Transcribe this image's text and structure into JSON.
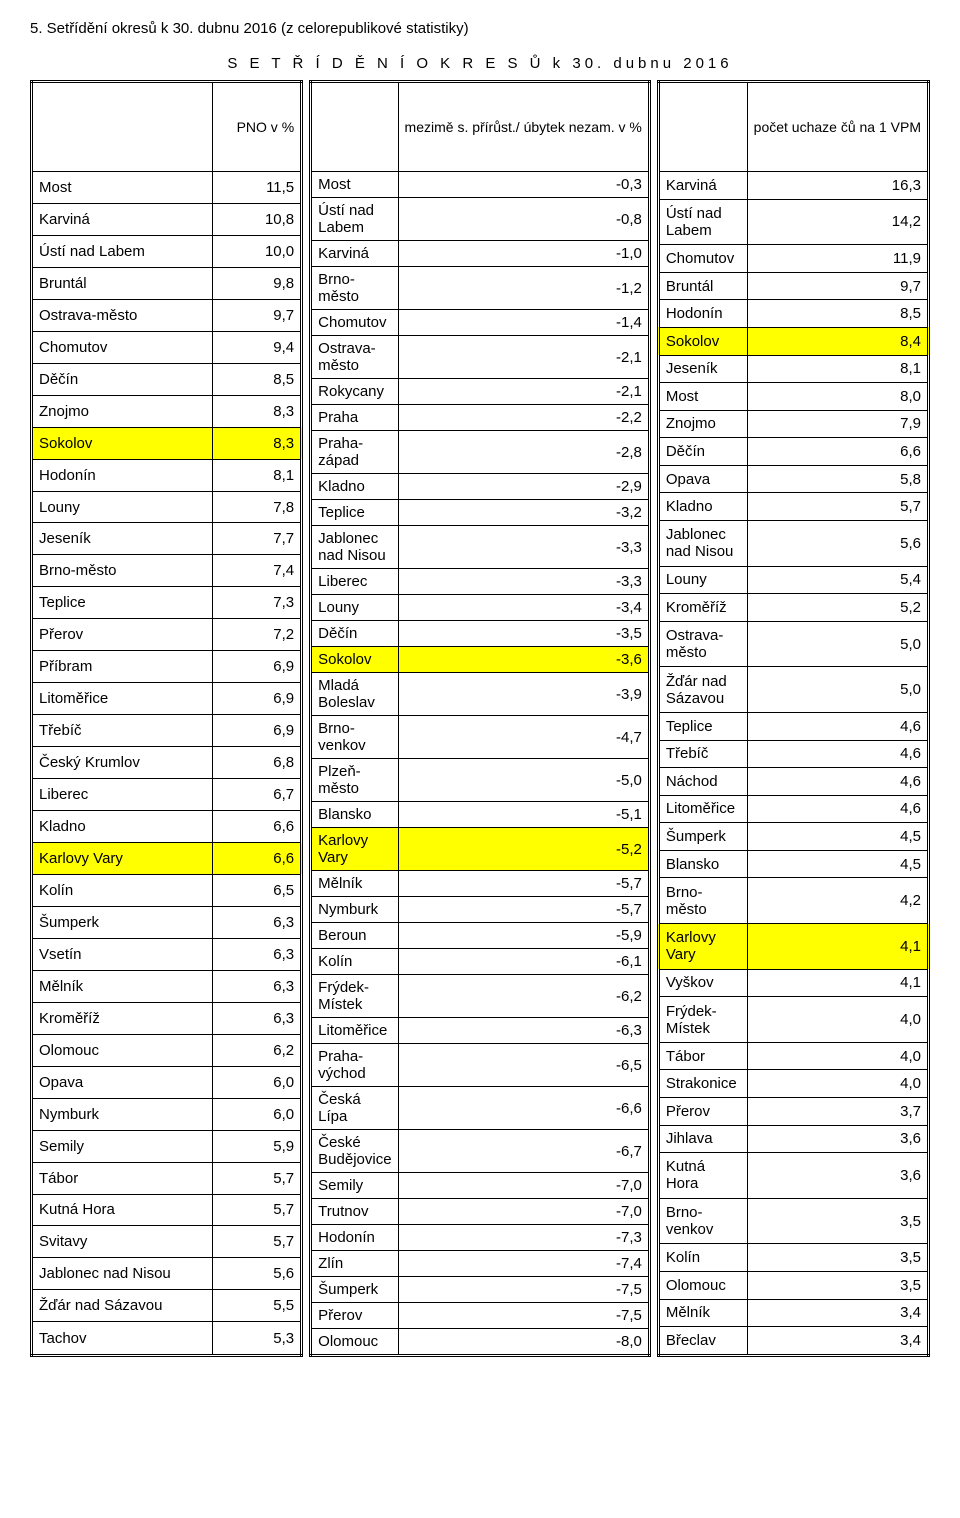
{
  "section_title": "5. Setřídění okresů k 30. dubnu 2016 (z celorepublikové statistiky)",
  "grid_title": "S E T Ř Í D Ě N Í   O K R E S Ů   k  30. dubnu 2016",
  "col1": {
    "header_name": "",
    "header_value": "PNO v %",
    "rows": [
      {
        "name": "Most",
        "value": "11,5"
      },
      {
        "name": "Karviná",
        "value": "10,8"
      },
      {
        "name": "Ústí nad Labem",
        "value": "10,0"
      },
      {
        "name": "Bruntál",
        "value": "9,8"
      },
      {
        "name": "Ostrava-město",
        "value": "9,7"
      },
      {
        "name": "Chomutov",
        "value": "9,4"
      },
      {
        "name": "Děčín",
        "value": "8,5"
      },
      {
        "name": "Znojmo",
        "value": "8,3"
      },
      {
        "name": "Sokolov",
        "value": "8,3",
        "hl_name": true,
        "hl_value": true
      },
      {
        "name": "Hodonín",
        "value": "8,1"
      },
      {
        "name": "Louny",
        "value": "7,8"
      },
      {
        "name": "Jeseník",
        "value": "7,7"
      },
      {
        "name": "Brno-město",
        "value": "7,4"
      },
      {
        "name": "Teplice",
        "value": "7,3"
      },
      {
        "name": "Přerov",
        "value": "7,2"
      },
      {
        "name": "Příbram",
        "value": "6,9"
      },
      {
        "name": "Litoměřice",
        "value": "6,9"
      },
      {
        "name": "Třebíč",
        "value": "6,9"
      },
      {
        "name": "Český Krumlov",
        "value": "6,8"
      },
      {
        "name": "Liberec",
        "value": "6,7"
      },
      {
        "name": "Kladno",
        "value": "6,6"
      },
      {
        "name": "Karlovy Vary",
        "value": "6,6",
        "hl_name": true,
        "hl_value": true
      },
      {
        "name": "Kolín",
        "value": "6,5"
      },
      {
        "name": "Šumperk",
        "value": "6,3"
      },
      {
        "name": "Vsetín",
        "value": "6,3"
      },
      {
        "name": "Mělník",
        "value": "6,3"
      },
      {
        "name": "Kroměříž",
        "value": "6,3"
      },
      {
        "name": "Olomouc",
        "value": "6,2"
      },
      {
        "name": "Opava",
        "value": "6,0"
      },
      {
        "name": "Nymburk",
        "value": "6,0"
      },
      {
        "name": "Semily",
        "value": "5,9"
      },
      {
        "name": "Tábor",
        "value": "5,7"
      },
      {
        "name": "Kutná Hora",
        "value": "5,7"
      },
      {
        "name": "Svitavy",
        "value": "5,7"
      },
      {
        "name": "Jablonec nad Nisou",
        "value": "5,6"
      },
      {
        "name": "Žďár nad Sázavou",
        "value": "5,5"
      },
      {
        "name": "Tachov",
        "value": "5,3"
      }
    ]
  },
  "col2": {
    "header_name": "",
    "header_value": "mezimě s. přírůst./ úbytek nezam. v %",
    "rows": [
      {
        "name": "Most",
        "value": "-0,3"
      },
      {
        "name": "Ústí nad Labem",
        "value": "-0,8"
      },
      {
        "name": "Karviná",
        "value": "-1,0"
      },
      {
        "name": "Brno-město",
        "value": "-1,2"
      },
      {
        "name": "Chomutov",
        "value": "-1,4"
      },
      {
        "name": "Ostrava-město",
        "value": "-2,1"
      },
      {
        "name": "Rokycany",
        "value": "-2,1"
      },
      {
        "name": "Praha",
        "value": "-2,2"
      },
      {
        "name": "Praha-západ",
        "value": "-2,8"
      },
      {
        "name": "Kladno",
        "value": "-2,9"
      },
      {
        "name": "Teplice",
        "value": "-3,2"
      },
      {
        "name": "Jablonec nad Nisou",
        "value": "-3,3"
      },
      {
        "name": "Liberec",
        "value": "-3,3"
      },
      {
        "name": "Louny",
        "value": "-3,4"
      },
      {
        "name": "Děčín",
        "value": "-3,5"
      },
      {
        "name": "Sokolov",
        "value": "-3,6",
        "hl_name": true,
        "hl_value": true
      },
      {
        "name": "Mladá Boleslav",
        "value": "-3,9"
      },
      {
        "name": "Brno-venkov",
        "value": "-4,7"
      },
      {
        "name": "Plzeň-město",
        "value": "-5,0"
      },
      {
        "name": "Blansko",
        "value": "-5,1"
      },
      {
        "name": "Karlovy Vary",
        "value": "-5,2",
        "hl_name": true,
        "hl_value": true
      },
      {
        "name": "Mělník",
        "value": "-5,7"
      },
      {
        "name": "Nymburk",
        "value": "-5,7"
      },
      {
        "name": "Beroun",
        "value": "-5,9"
      },
      {
        "name": "Kolín",
        "value": "-6,1"
      },
      {
        "name": "Frýdek-Místek",
        "value": "-6,2"
      },
      {
        "name": "Litoměřice",
        "value": "-6,3"
      },
      {
        "name": "Praha-východ",
        "value": "-6,5"
      },
      {
        "name": "Česká Lípa",
        "value": "-6,6"
      },
      {
        "name": "České Budějovice",
        "value": "-6,7"
      },
      {
        "name": "Semily",
        "value": "-7,0"
      },
      {
        "name": "Trutnov",
        "value": "-7,0"
      },
      {
        "name": "Hodonín",
        "value": "-7,3"
      },
      {
        "name": "Zlín",
        "value": "-7,4"
      },
      {
        "name": "Šumperk",
        "value": "-7,5"
      },
      {
        "name": "Přerov",
        "value": "-7,5"
      },
      {
        "name": "Olomouc",
        "value": "-8,0"
      }
    ]
  },
  "col3": {
    "header_name": "",
    "header_value": "počet uchaze čů na 1 VPM",
    "rows": [
      {
        "name": "Karviná",
        "value": "16,3"
      },
      {
        "name": "Ústí nad Labem",
        "value": "14,2"
      },
      {
        "name": "Chomutov",
        "value": "11,9"
      },
      {
        "name": "Bruntál",
        "value": "9,7"
      },
      {
        "name": "Hodonín",
        "value": "8,5"
      },
      {
        "name": "Sokolov",
        "value": "8,4",
        "hl_name": true,
        "hl_value": true
      },
      {
        "name": "Jeseník",
        "value": "8,1"
      },
      {
        "name": "Most",
        "value": "8,0"
      },
      {
        "name": "Znojmo",
        "value": "7,9"
      },
      {
        "name": "Děčín",
        "value": "6,6"
      },
      {
        "name": "Opava",
        "value": "5,8"
      },
      {
        "name": "Kladno",
        "value": "5,7"
      },
      {
        "name": "Jablonec nad Nisou",
        "value": "5,6"
      },
      {
        "name": "Louny",
        "value": "5,4"
      },
      {
        "name": "Kroměříž",
        "value": "5,2"
      },
      {
        "name": "Ostrava-město",
        "value": "5,0"
      },
      {
        "name": "Žďár nad Sázavou",
        "value": "5,0"
      },
      {
        "name": "Teplice",
        "value": "4,6"
      },
      {
        "name": "Třebíč",
        "value": "4,6"
      },
      {
        "name": "Náchod",
        "value": "4,6"
      },
      {
        "name": "Litoměřice",
        "value": "4,6"
      },
      {
        "name": "Šumperk",
        "value": "4,5"
      },
      {
        "name": "Blansko",
        "value": "4,5"
      },
      {
        "name": "Brno-město",
        "value": "4,2"
      },
      {
        "name": "Karlovy Vary",
        "value": "4,1",
        "hl_name": true,
        "hl_value": true
      },
      {
        "name": "Vyškov",
        "value": "4,1"
      },
      {
        "name": "Frýdek-Místek",
        "value": "4,0"
      },
      {
        "name": "Tábor",
        "value": "4,0"
      },
      {
        "name": "Strakonice",
        "value": "4,0"
      },
      {
        "name": "Přerov",
        "value": "3,7"
      },
      {
        "name": "Jihlava",
        "value": "3,6"
      },
      {
        "name": "Kutná Hora",
        "value": "3,6"
      },
      {
        "name": "Brno-venkov",
        "value": "3,5"
      },
      {
        "name": "Kolín",
        "value": "3,5"
      },
      {
        "name": "Olomouc",
        "value": "3,5"
      },
      {
        "name": "Mělník",
        "value": "3,4"
      },
      {
        "name": "Břeclav",
        "value": "3,4"
      }
    ]
  }
}
